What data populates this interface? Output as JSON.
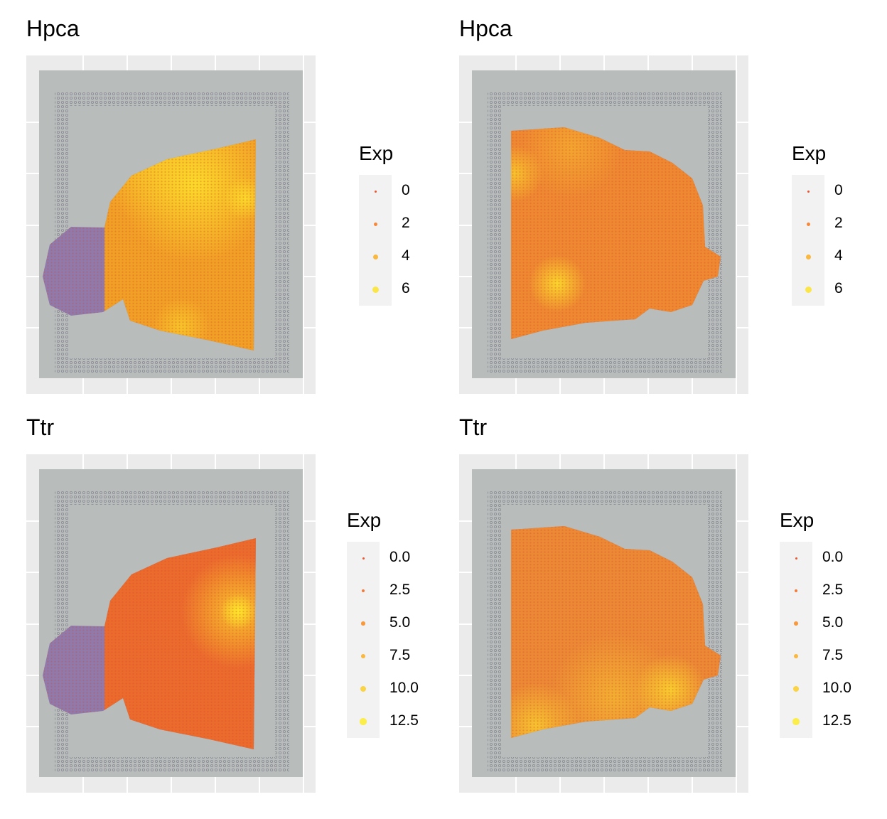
{
  "chart_data": [
    {
      "type": "scatter",
      "subtype": "spatial-feature",
      "title": "Hpca",
      "legend": {
        "title": "Exp",
        "breaks": [
          "0",
          "2",
          "4",
          "6"
        ],
        "colors": [
          "#f0522a",
          "#f7883a",
          "#f9b840",
          "#fbe64a"
        ]
      },
      "section": "sagittal-1",
      "range": [
        0,
        7
      ]
    },
    {
      "type": "scatter",
      "subtype": "spatial-feature",
      "title": "Hpca",
      "legend": {
        "title": "Exp",
        "breaks": [
          "0",
          "2",
          "4",
          "6"
        ],
        "colors": [
          "#f0522a",
          "#f7883a",
          "#f9b840",
          "#fbe64a"
        ]
      },
      "section": "sagittal-2",
      "range": [
        0,
        7
      ]
    },
    {
      "type": "scatter",
      "subtype": "spatial-feature",
      "title": "Ttr",
      "legend": {
        "title": "Exp",
        "breaks": [
          "0.0",
          "2.5",
          "5.0",
          "7.5",
          "10.0",
          "12.5"
        ],
        "colors": [
          "#f0522a",
          "#f57a36",
          "#f7993c",
          "#f9b840",
          "#fad444",
          "#fbee4a"
        ]
      },
      "section": "sagittal-1",
      "range": [
        0,
        13
      ]
    },
    {
      "type": "scatter",
      "subtype": "spatial-feature",
      "title": "Ttr",
      "legend": {
        "title": "Exp",
        "breaks": [
          "0.0",
          "2.5",
          "5.0",
          "7.5",
          "10.0",
          "12.5"
        ],
        "colors": [
          "#f0522a",
          "#f57a36",
          "#f7993c",
          "#f9b840",
          "#fad444",
          "#fbee4a"
        ]
      },
      "section": "sagittal-2",
      "range": [
        0,
        13
      ]
    }
  ]
}
